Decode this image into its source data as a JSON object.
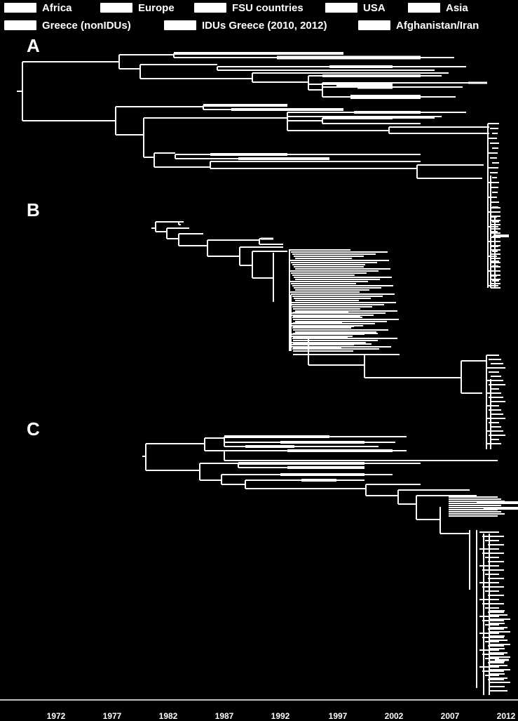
{
  "legend": [
    {
      "label": "Africa",
      "color": "#ffffff"
    },
    {
      "label": "Europe",
      "color": "#ffffff"
    },
    {
      "label": "FSU countries",
      "color": "#ffffff"
    },
    {
      "label": "USA",
      "color": "#ffffff"
    },
    {
      "label": "Asia",
      "color": "#ffffff"
    },
    {
      "label": "Greece (nonIDUs)",
      "color": "#ffffff"
    },
    {
      "label": "IDUs Greece (2010, 2012)",
      "color": "#ffffff"
    },
    {
      "label": "Afghanistan/Iran",
      "color": "#ffffff"
    }
  ],
  "panels": [
    {
      "letter": "A"
    },
    {
      "letter": "B"
    },
    {
      "letter": "C"
    }
  ],
  "axis": {
    "ticks": [
      "1972",
      "1977",
      "1982",
      "1987",
      "1992",
      "1997",
      "2002",
      "2007",
      "2012"
    ]
  },
  "colors": {
    "background": "#000000",
    "foreground": "#ffffff"
  }
}
